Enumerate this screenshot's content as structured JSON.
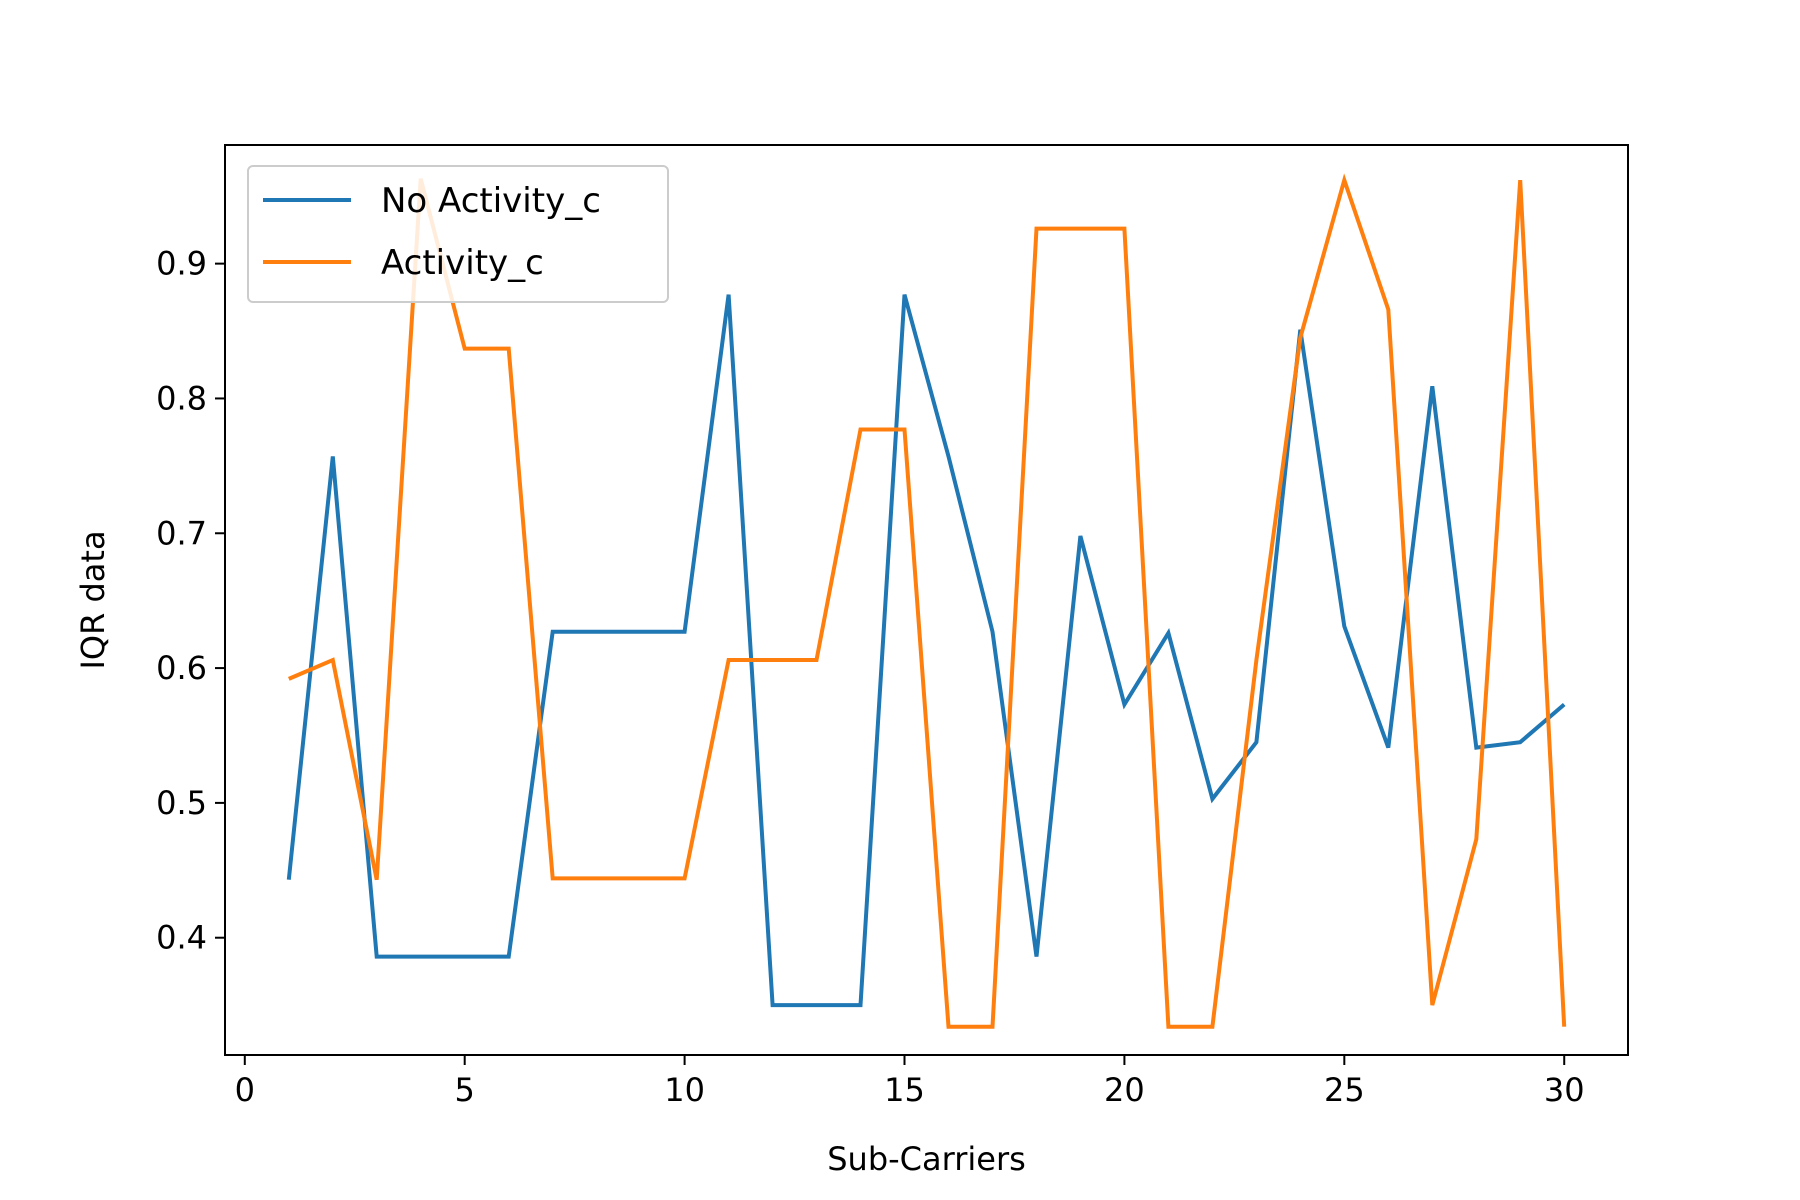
{
  "chart_data": {
    "type": "line",
    "title": "",
    "xlabel": "Sub-Carriers",
    "ylabel": "IQR data",
    "xlim": [
      -0.45,
      31.45
    ],
    "ylim": [
      0.313,
      0.988
    ],
    "xticks": [
      0,
      5,
      10,
      15,
      20,
      25,
      30
    ],
    "yticks": [
      0.4,
      0.5,
      0.6,
      0.7,
      0.8,
      0.9
    ],
    "grid": false,
    "legend_position": "top-left",
    "x": [
      1,
      2,
      3,
      4,
      5,
      6,
      7,
      8,
      9,
      10,
      11,
      12,
      13,
      14,
      15,
      16,
      17,
      18,
      19,
      20,
      21,
      22,
      23,
      24,
      25,
      26,
      27,
      28,
      29,
      30
    ],
    "series": [
      {
        "name": "No Activity_c",
        "color": "#1f77b4",
        "values": [
          0.443,
          0.757,
          0.386,
          0.386,
          0.386,
          0.386,
          0.627,
          0.627,
          0.627,
          0.627,
          0.877,
          0.35,
          0.35,
          0.35,
          0.877,
          0.757,
          0.627,
          0.386,
          0.698,
          0.573,
          0.626,
          0.503,
          0.545,
          0.851,
          0.631,
          0.541,
          0.809,
          0.541,
          0.545,
          0.573
        ]
      },
      {
        "name": "Activity_c",
        "color": "#ff7f0e",
        "values": [
          0.592,
          0.606,
          0.443,
          0.963,
          0.837,
          0.837,
          0.444,
          0.444,
          0.444,
          0.444,
          0.606,
          0.606,
          0.606,
          0.777,
          0.777,
          0.334,
          0.334,
          0.926,
          0.926,
          0.926,
          0.334,
          0.334,
          0.606,
          0.845,
          0.962,
          0.866,
          0.35,
          0.473,
          0.962,
          0.334
        ]
      }
    ]
  }
}
